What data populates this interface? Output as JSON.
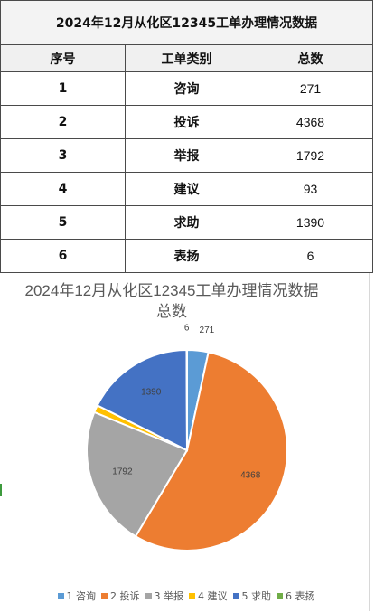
{
  "table": {
    "title": "2024年12月从化区12345工单办理情况数据",
    "headers": [
      "序号",
      "工单类别",
      "总数"
    ],
    "rows": [
      {
        "index": "1",
        "category": "咨询",
        "total": "271"
      },
      {
        "index": "2",
        "category": "投诉",
        "total": "4368"
      },
      {
        "index": "3",
        "category": "举报",
        "total": "1792"
      },
      {
        "index": "4",
        "category": "建议",
        "total": "93"
      },
      {
        "index": "5",
        "category": "求助",
        "total": "1390"
      },
      {
        "index": "6",
        "category": "表扬",
        "total": "6"
      }
    ]
  },
  "chart_data": {
    "type": "pie",
    "title": "2024年12月从化区12345工单办理情况数据",
    "subtitle": "总数",
    "categories": [
      "1 咨询",
      "2 投诉",
      "3 举报",
      "4 建议",
      "5 求助",
      "6 表扬"
    ],
    "values": [
      271,
      4368,
      1792,
      93,
      1390,
      6
    ],
    "colors": [
      "#5b9bd5",
      "#ed7d31",
      "#a5a5a5",
      "#ffc000",
      "#4472c4",
      "#70ad47"
    ],
    "legend_position": "bottom",
    "data_labels": true
  }
}
